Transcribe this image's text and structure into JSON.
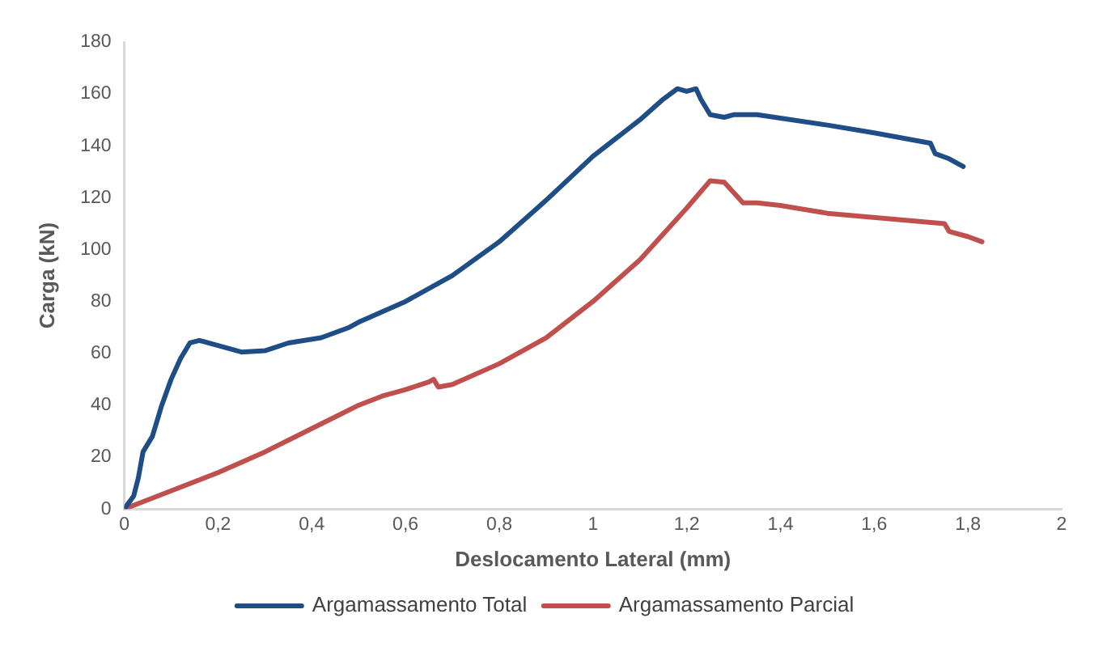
{
  "chart_data": {
    "type": "line",
    "xlabel": "Deslocamento Lateral (mm)",
    "ylabel": "Carga (kN)",
    "xlim": [
      0,
      2
    ],
    "xticks": [
      0,
      {
        "value": 0.2,
        "label": "0,2"
      },
      {
        "value": 0.4,
        "label": "0,4"
      },
      {
        "value": 0.6,
        "label": "0,6"
      },
      {
        "value": 0.8,
        "label": "0,8"
      },
      1,
      {
        "value": 1.2,
        "label": "1,2"
      },
      {
        "value": 1.4,
        "label": "1,4"
      },
      {
        "value": 1.6,
        "label": "1,6"
      },
      {
        "value": 1.8,
        "label": "1,8"
      },
      2
    ],
    "ylim": [
      0,
      180
    ],
    "yticks": [
      0,
      20,
      40,
      60,
      80,
      100,
      120,
      140,
      160,
      180
    ],
    "grid": false,
    "legend": "bottom",
    "marker": "none",
    "line_style": "solid",
    "series": [
      {
        "name": "Argamassamento Total",
        "color": "#1f4e87",
        "x": [
          0,
          0.02,
          0.03,
          0.04,
          0.06,
          0.08,
          0.1,
          0.12,
          0.14,
          0.16,
          0.2,
          0.25,
          0.3,
          0.35,
          0.42,
          0.48,
          0.5,
          0.6,
          0.7,
          0.8,
          0.9,
          1.0,
          1.1,
          1.15,
          1.18,
          1.2,
          1.22,
          1.23,
          1.25,
          1.28,
          1.3,
          1.35,
          1.5,
          1.6,
          1.72,
          1.73,
          1.76,
          1.79
        ],
        "values": [
          0,
          5,
          12,
          22,
          28,
          40,
          50,
          58,
          64,
          65,
          63,
          60.5,
          61,
          64,
          66,
          70,
          72,
          80,
          90,
          103,
          119,
          136,
          150,
          158,
          162,
          161,
          162,
          158,
          152,
          151,
          152,
          152,
          148,
          145,
          141,
          137,
          135,
          132
        ]
      },
      {
        "name": "Argamassamento Parcial",
        "color": "#c0504d",
        "x": [
          0,
          0.1,
          0.2,
          0.25,
          0.3,
          0.4,
          0.5,
          0.55,
          0.6,
          0.65,
          0.66,
          0.67,
          0.7,
          0.8,
          0.9,
          1.0,
          1.1,
          1.2,
          1.25,
          1.28,
          1.3,
          1.32,
          1.35,
          1.4,
          1.5,
          1.75,
          1.76,
          1.8,
          1.83
        ],
        "values": [
          0,
          7,
          14,
          18,
          22,
          31,
          40,
          43.5,
          46,
          49,
          50,
          47,
          48,
          56,
          66,
          80,
          96,
          116,
          126.5,
          126,
          122,
          118,
          118,
          117,
          114,
          110,
          107,
          105,
          103
        ]
      }
    ]
  }
}
